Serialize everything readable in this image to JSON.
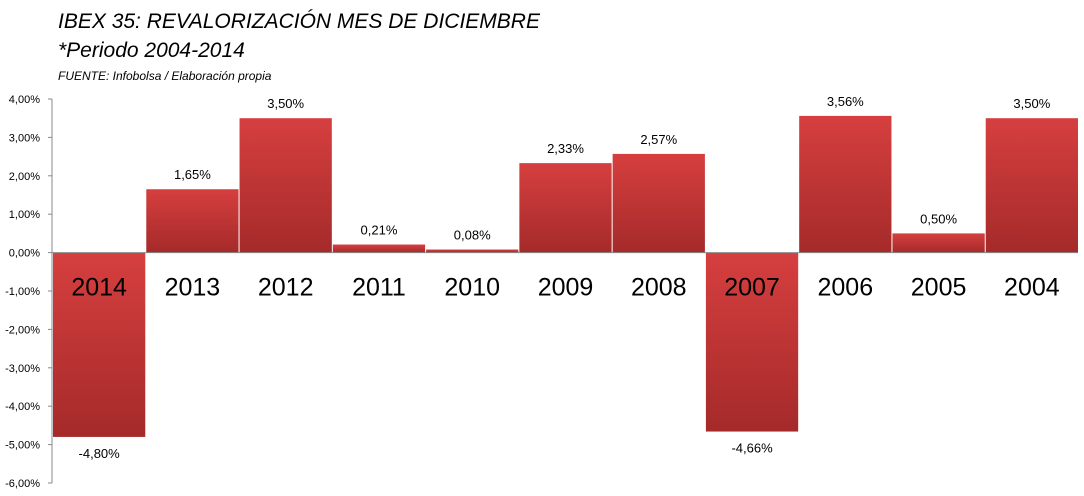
{
  "header": {
    "title": "IBEX 35: REVALORIZACIÓN MES DE DICIEMBRE",
    "subtitle": "*Periodo 2004-2014",
    "source": "FUENTE: Infobolsa / Elaboración propia"
  },
  "chart_data": {
    "type": "bar",
    "categories": [
      "2014",
      "2013",
      "2012",
      "2011",
      "2010",
      "2009",
      "2008",
      "2007",
      "2006",
      "2005",
      "2004"
    ],
    "values": [
      -4.8,
      1.65,
      3.5,
      0.21,
      0.08,
      2.33,
      2.57,
      -4.66,
      3.56,
      0.5,
      3.5
    ],
    "data_labels": [
      "-4,80%",
      "1,65%",
      "3,50%",
      "0,21%",
      "0,08%",
      "2,33%",
      "2,57%",
      "-4,66%",
      "3,56%",
      "0,50%",
      "3,50%"
    ],
    "y_ticks": [
      "4,00%",
      "3,00%",
      "2,00%",
      "1,00%",
      "0,00%",
      "-1,00%",
      "-2,00%",
      "-3,00%",
      "-4,00%",
      "-5,00%",
      "-6,00%"
    ],
    "ylim": [
      -6,
      4
    ],
    "grid": false,
    "legend": "none",
    "colors": {
      "bar_top": "#d63f3f",
      "bar_bottom": "#a52a2a"
    }
  }
}
